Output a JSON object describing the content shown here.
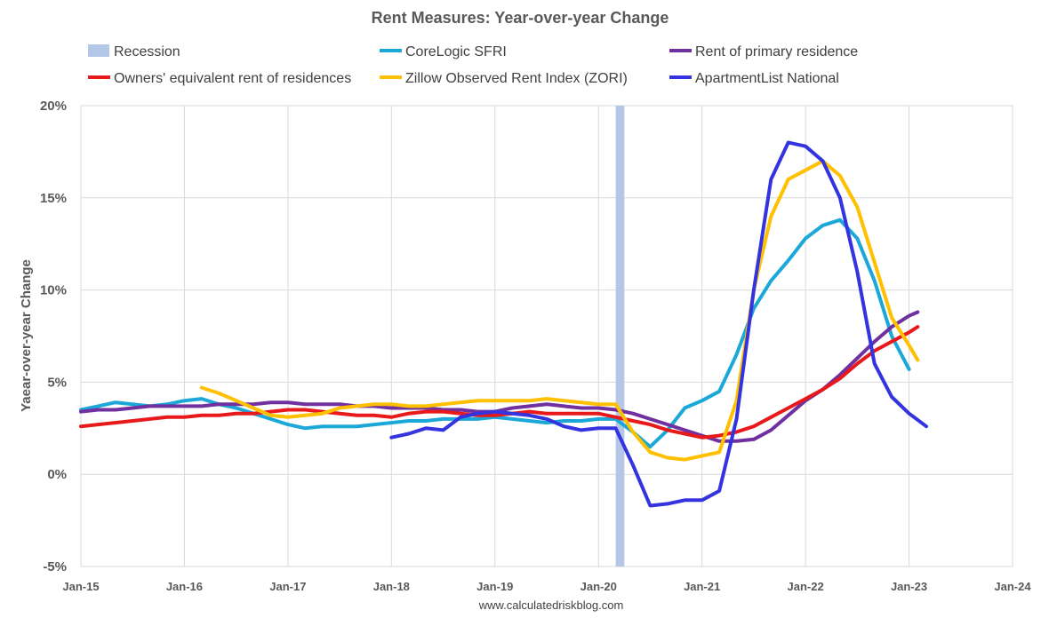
{
  "chart_data": {
    "type": "line",
    "title": "Rent Measures: Year-over-year Change",
    "ylabel": "Yaear-over-year Change",
    "xlabel": "",
    "source": "www.calculatedriskblog.com",
    "ylim": [
      -5,
      20
    ],
    "yticks": [
      -5,
      0,
      5,
      10,
      15,
      20
    ],
    "ytick_labels": [
      "-5%",
      "0%",
      "5%",
      "10%",
      "15%",
      "20%"
    ],
    "xlim": [
      "2015-01",
      "2024-01"
    ],
    "xticks": [
      "2015-01",
      "2016-01",
      "2017-01",
      "2018-01",
      "2019-01",
      "2020-01",
      "2021-01",
      "2022-01",
      "2023-01",
      "2024-01"
    ],
    "xtick_labels": [
      "Jan-15",
      "Jan-16",
      "Jan-17",
      "Jan-18",
      "Jan-19",
      "Jan-20",
      "Jan-21",
      "Jan-22",
      "Jan-23",
      "Jan-24"
    ],
    "grid": "vertical and horizontal",
    "legend_position": "top",
    "recession": {
      "label": "Recession",
      "start": "2020-03",
      "end": "2020-04",
      "color": "#b4c7e7"
    },
    "series": [
      {
        "name": "CoreLogic SFRI",
        "color": "#1ba8d8",
        "points": [
          [
            "2015-01",
            3.5
          ],
          [
            "2015-03",
            3.7
          ],
          [
            "2015-05",
            3.9
          ],
          [
            "2015-07",
            3.8
          ],
          [
            "2015-09",
            3.7
          ],
          [
            "2015-11",
            3.8
          ],
          [
            "2016-01",
            4.0
          ],
          [
            "2016-03",
            4.1
          ],
          [
            "2016-05",
            3.8
          ],
          [
            "2016-07",
            3.6
          ],
          [
            "2016-09",
            3.3
          ],
          [
            "2016-11",
            3.0
          ],
          [
            "2017-01",
            2.7
          ],
          [
            "2017-03",
            2.5
          ],
          [
            "2017-05",
            2.6
          ],
          [
            "2017-07",
            2.6
          ],
          [
            "2017-09",
            2.6
          ],
          [
            "2017-11",
            2.7
          ],
          [
            "2018-01",
            2.8
          ],
          [
            "2018-03",
            2.9
          ],
          [
            "2018-05",
            2.9
          ],
          [
            "2018-07",
            3.0
          ],
          [
            "2018-09",
            3.0
          ],
          [
            "2018-11",
            3.0
          ],
          [
            "2019-01",
            3.1
          ],
          [
            "2019-03",
            3.0
          ],
          [
            "2019-05",
            2.9
          ],
          [
            "2019-07",
            2.8
          ],
          [
            "2019-09",
            2.9
          ],
          [
            "2019-11",
            2.9
          ],
          [
            "2020-01",
            3.0
          ],
          [
            "2020-03",
            3.0
          ],
          [
            "2020-05",
            2.3
          ],
          [
            "2020-07",
            1.5
          ],
          [
            "2020-09",
            2.4
          ],
          [
            "2020-11",
            3.6
          ],
          [
            "2021-01",
            4.0
          ],
          [
            "2021-03",
            4.5
          ],
          [
            "2021-05",
            6.5
          ],
          [
            "2021-07",
            9.0
          ],
          [
            "2021-09",
            10.5
          ],
          [
            "2021-11",
            11.6
          ],
          [
            "2022-01",
            12.8
          ],
          [
            "2022-03",
            13.5
          ],
          [
            "2022-05",
            13.8
          ],
          [
            "2022-07",
            12.8
          ],
          [
            "2022-09",
            10.5
          ],
          [
            "2022-11",
            7.5
          ],
          [
            "2023-01",
            5.7
          ]
        ]
      },
      {
        "name": "Rent of primary residence",
        "color": "#7030a0",
        "points": [
          [
            "2015-01",
            3.4
          ],
          [
            "2015-03",
            3.5
          ],
          [
            "2015-05",
            3.5
          ],
          [
            "2015-07",
            3.6
          ],
          [
            "2015-09",
            3.7
          ],
          [
            "2015-11",
            3.7
          ],
          [
            "2016-01",
            3.7
          ],
          [
            "2016-03",
            3.7
          ],
          [
            "2016-05",
            3.8
          ],
          [
            "2016-07",
            3.8
          ],
          [
            "2016-09",
            3.8
          ],
          [
            "2016-11",
            3.9
          ],
          [
            "2017-01",
            3.9
          ],
          [
            "2017-03",
            3.8
          ],
          [
            "2017-05",
            3.8
          ],
          [
            "2017-07",
            3.8
          ],
          [
            "2017-09",
            3.7
          ],
          [
            "2017-11",
            3.7
          ],
          [
            "2018-01",
            3.6
          ],
          [
            "2018-03",
            3.6
          ],
          [
            "2018-05",
            3.6
          ],
          [
            "2018-07",
            3.5
          ],
          [
            "2018-09",
            3.5
          ],
          [
            "2018-11",
            3.4
          ],
          [
            "2019-01",
            3.4
          ],
          [
            "2019-03",
            3.6
          ],
          [
            "2019-05",
            3.7
          ],
          [
            "2019-07",
            3.8
          ],
          [
            "2019-09",
            3.7
          ],
          [
            "2019-11",
            3.6
          ],
          [
            "2020-01",
            3.6
          ],
          [
            "2020-03",
            3.5
          ],
          [
            "2020-05",
            3.3
          ],
          [
            "2020-07",
            3.0
          ],
          [
            "2020-09",
            2.7
          ],
          [
            "2020-11",
            2.4
          ],
          [
            "2021-01",
            2.1
          ],
          [
            "2021-03",
            1.8
          ],
          [
            "2021-05",
            1.8
          ],
          [
            "2021-07",
            1.9
          ],
          [
            "2021-09",
            2.4
          ],
          [
            "2021-11",
            3.2
          ],
          [
            "2022-01",
            4.0
          ],
          [
            "2022-03",
            4.6
          ],
          [
            "2022-05",
            5.4
          ],
          [
            "2022-07",
            6.3
          ],
          [
            "2022-09",
            7.2
          ],
          [
            "2022-11",
            8.0
          ],
          [
            "2023-01",
            8.6
          ],
          [
            "2023-02",
            8.8
          ]
        ]
      },
      {
        "name": "Owners' equivalent rent of residences",
        "color": "#e8191b",
        "points": [
          [
            "2015-01",
            2.6
          ],
          [
            "2015-03",
            2.7
          ],
          [
            "2015-05",
            2.8
          ],
          [
            "2015-07",
            2.9
          ],
          [
            "2015-09",
            3.0
          ],
          [
            "2015-11",
            3.1
          ],
          [
            "2016-01",
            3.1
          ],
          [
            "2016-03",
            3.2
          ],
          [
            "2016-05",
            3.2
          ],
          [
            "2016-07",
            3.3
          ],
          [
            "2016-09",
            3.3
          ],
          [
            "2016-11",
            3.4
          ],
          [
            "2017-01",
            3.5
          ],
          [
            "2017-03",
            3.5
          ],
          [
            "2017-05",
            3.4
          ],
          [
            "2017-07",
            3.3
          ],
          [
            "2017-09",
            3.2
          ],
          [
            "2017-11",
            3.2
          ],
          [
            "2018-01",
            3.1
          ],
          [
            "2018-03",
            3.3
          ],
          [
            "2018-05",
            3.4
          ],
          [
            "2018-07",
            3.4
          ],
          [
            "2018-09",
            3.3
          ],
          [
            "2018-11",
            3.2
          ],
          [
            "2019-01",
            3.2
          ],
          [
            "2019-03",
            3.3
          ],
          [
            "2019-05",
            3.4
          ],
          [
            "2019-07",
            3.3
          ],
          [
            "2019-09",
            3.3
          ],
          [
            "2019-11",
            3.3
          ],
          [
            "2020-01",
            3.3
          ],
          [
            "2020-03",
            3.1
          ],
          [
            "2020-05",
            2.9
          ],
          [
            "2020-07",
            2.7
          ],
          [
            "2020-09",
            2.4
          ],
          [
            "2020-11",
            2.2
          ],
          [
            "2021-01",
            2.0
          ],
          [
            "2021-03",
            2.1
          ],
          [
            "2021-05",
            2.3
          ],
          [
            "2021-07",
            2.6
          ],
          [
            "2021-09",
            3.1
          ],
          [
            "2021-11",
            3.6
          ],
          [
            "2022-01",
            4.1
          ],
          [
            "2022-03",
            4.6
          ],
          [
            "2022-05",
            5.2
          ],
          [
            "2022-07",
            6.0
          ],
          [
            "2022-09",
            6.7
          ],
          [
            "2022-11",
            7.2
          ],
          [
            "2023-01",
            7.7
          ],
          [
            "2023-02",
            8.0
          ]
        ]
      },
      {
        "name": "Zillow Observed Rent Index (ZORI)",
        "color": "#ffc000",
        "points": [
          [
            "2016-03",
            4.7
          ],
          [
            "2016-05",
            4.4
          ],
          [
            "2016-07",
            4.0
          ],
          [
            "2016-09",
            3.6
          ],
          [
            "2016-11",
            3.2
          ],
          [
            "2017-01",
            3.1
          ],
          [
            "2017-03",
            3.2
          ],
          [
            "2017-05",
            3.3
          ],
          [
            "2017-07",
            3.6
          ],
          [
            "2017-09",
            3.7
          ],
          [
            "2017-11",
            3.8
          ],
          [
            "2018-01",
            3.8
          ],
          [
            "2018-03",
            3.7
          ],
          [
            "2018-05",
            3.7
          ],
          [
            "2018-07",
            3.8
          ],
          [
            "2018-09",
            3.9
          ],
          [
            "2018-11",
            4.0
          ],
          [
            "2019-01",
            4.0
          ],
          [
            "2019-03",
            4.0
          ],
          [
            "2019-05",
            4.0
          ],
          [
            "2019-07",
            4.1
          ],
          [
            "2019-09",
            4.0
          ],
          [
            "2019-11",
            3.9
          ],
          [
            "2020-01",
            3.8
          ],
          [
            "2020-03",
            3.8
          ],
          [
            "2020-05",
            2.3
          ],
          [
            "2020-07",
            1.2
          ],
          [
            "2020-09",
            0.9
          ],
          [
            "2020-11",
            0.8
          ],
          [
            "2021-01",
            1.0
          ],
          [
            "2021-03",
            1.2
          ],
          [
            "2021-05",
            4.0
          ],
          [
            "2021-07",
            10.0
          ],
          [
            "2021-09",
            14.0
          ],
          [
            "2021-11",
            16.0
          ],
          [
            "2022-01",
            16.5
          ],
          [
            "2022-03",
            17.0
          ],
          [
            "2022-05",
            16.2
          ],
          [
            "2022-07",
            14.5
          ],
          [
            "2022-09",
            11.5
          ],
          [
            "2022-11",
            8.5
          ],
          [
            "2023-01",
            7.0
          ],
          [
            "2023-02",
            6.2
          ]
        ]
      },
      {
        "name": "ApartmentList National",
        "color": "#3333e0",
        "points": [
          [
            "2018-01",
            2.0
          ],
          [
            "2018-03",
            2.2
          ],
          [
            "2018-05",
            2.5
          ],
          [
            "2018-07",
            2.4
          ],
          [
            "2018-09",
            3.1
          ],
          [
            "2018-11",
            3.3
          ],
          [
            "2019-01",
            3.4
          ],
          [
            "2019-03",
            3.3
          ],
          [
            "2019-05",
            3.2
          ],
          [
            "2019-07",
            3.0
          ],
          [
            "2019-09",
            2.6
          ],
          [
            "2019-11",
            2.4
          ],
          [
            "2020-01",
            2.5
          ],
          [
            "2020-03",
            2.5
          ],
          [
            "2020-05",
            0.5
          ],
          [
            "2020-07",
            -1.7
          ],
          [
            "2020-09",
            -1.6
          ],
          [
            "2020-11",
            -1.4
          ],
          [
            "2021-01",
            -1.4
          ],
          [
            "2021-03",
            -0.9
          ],
          [
            "2021-05",
            3.0
          ],
          [
            "2021-07",
            10.0
          ],
          [
            "2021-09",
            16.0
          ],
          [
            "2021-11",
            18.0
          ],
          [
            "2022-01",
            17.8
          ],
          [
            "2022-03",
            17.0
          ],
          [
            "2022-05",
            15.0
          ],
          [
            "2022-07",
            11.0
          ],
          [
            "2022-09",
            6.0
          ],
          [
            "2022-11",
            4.2
          ],
          [
            "2023-01",
            3.3
          ],
          [
            "2023-03",
            2.6
          ]
        ]
      }
    ]
  }
}
